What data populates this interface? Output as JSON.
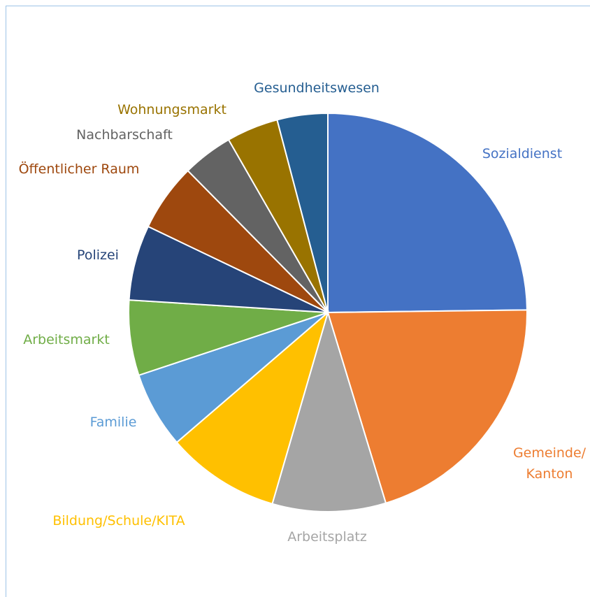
{
  "chart_data": {
    "type": "pie",
    "categories": [
      "Sozialdienst",
      "Gemeinde/\nKanton",
      "Arbeitsplatz",
      "Bildung/Schule/KITA",
      "Familie",
      "Arbeitsmarkt",
      "Polizei",
      "Öffentlicher Raum",
      "Nachbarschaft",
      "Wohnungsmarkt",
      "Gesundheitswesen"
    ],
    "values": [
      24.8,
      20.5,
      9.2,
      9.2,
      6.2,
      6.1,
      6.1,
      5.5,
      4.1,
      4.2,
      4.1
    ],
    "colors": [
      "#4472c4",
      "#ed7d31",
      "#a5a5a5",
      "#ffc000",
      "#5b9bd5",
      "#70ad47",
      "#264478",
      "#9e480e",
      "#636363",
      "#997300",
      "#255e91"
    ]
  }
}
